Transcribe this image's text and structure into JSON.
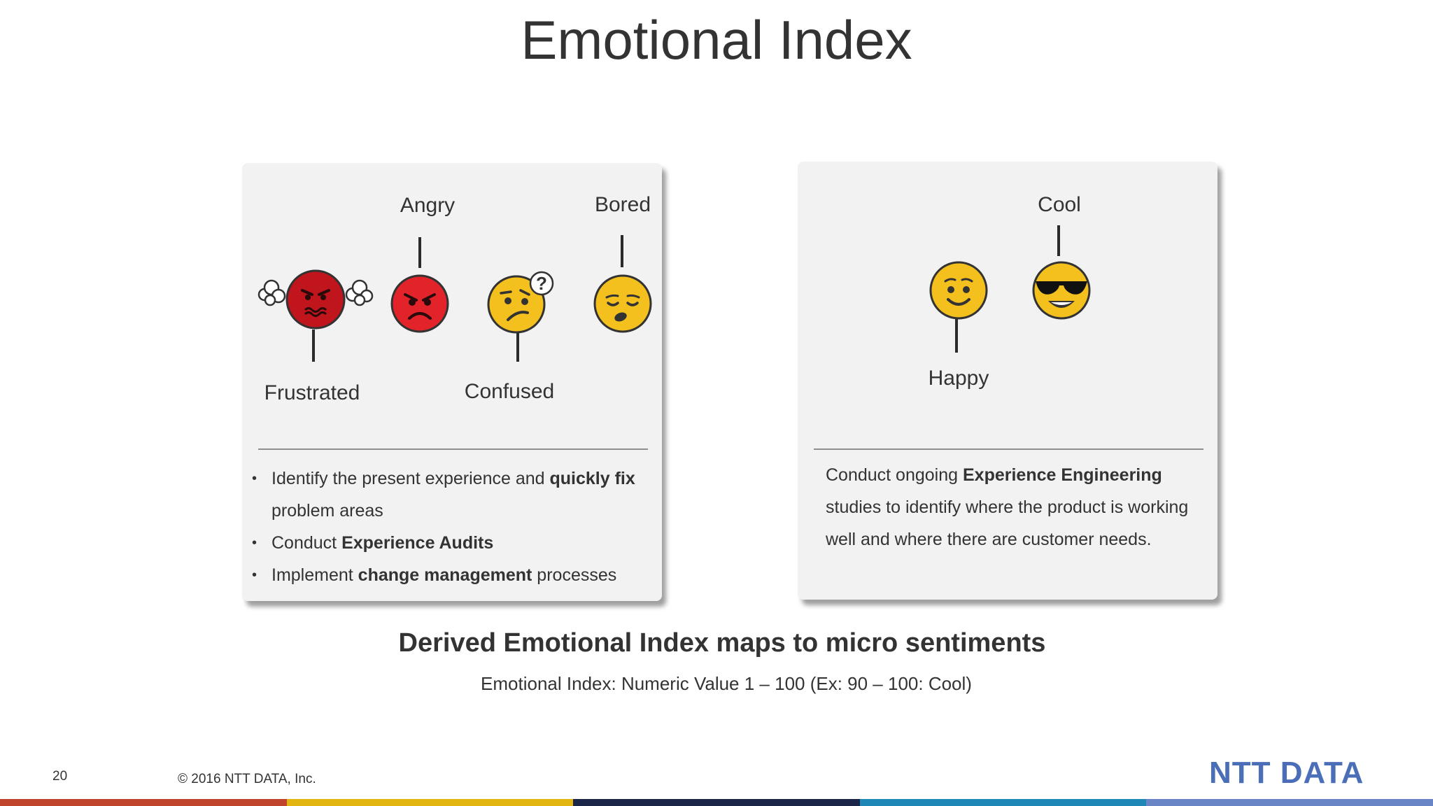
{
  "title": "Emotional Index",
  "left_panel": {
    "labels": {
      "frustrated": "Frustrated",
      "angry": "Angry",
      "confused": "Confused",
      "bored": "Bored"
    },
    "faces": [
      "frustrated-face-icon",
      "angry-face-icon",
      "confused-face-icon",
      "bored-face-icon"
    ],
    "bullets": [
      {
        "pre": "Identify the present experience and ",
        "bold": "quickly fix",
        "post": " problem areas"
      },
      {
        "pre": "Conduct ",
        "bold": "Experience Audits",
        "post": ""
      },
      {
        "pre": "Implement ",
        "bold": "change management",
        "post": " processes"
      }
    ]
  },
  "right_panel": {
    "labels": {
      "happy": "Happy",
      "cool": "Cool"
    },
    "faces": [
      "happy-face-icon",
      "cool-face-icon"
    ],
    "paragraph": {
      "pre": "Conduct ongoing ",
      "bold": "Experience Engineering",
      "post": " studies to identify where the product is working well and where there are customer needs."
    }
  },
  "headline": "Derived Emotional Index maps to micro sentiments",
  "subline": "Emotional Index: Numeric Value 1 – 100 (Ex: 90 – 100: Cool)",
  "footer": {
    "page_number": "20",
    "copyright": "© 2016 NTT DATA, Inc.",
    "logo": "NTT DATA"
  },
  "colors": {
    "bar": [
      "#c0442c",
      "#e3b511",
      "#1b2547",
      "#1e87b6",
      "#6a85c6"
    ],
    "logo": "#4a6fb8"
  }
}
